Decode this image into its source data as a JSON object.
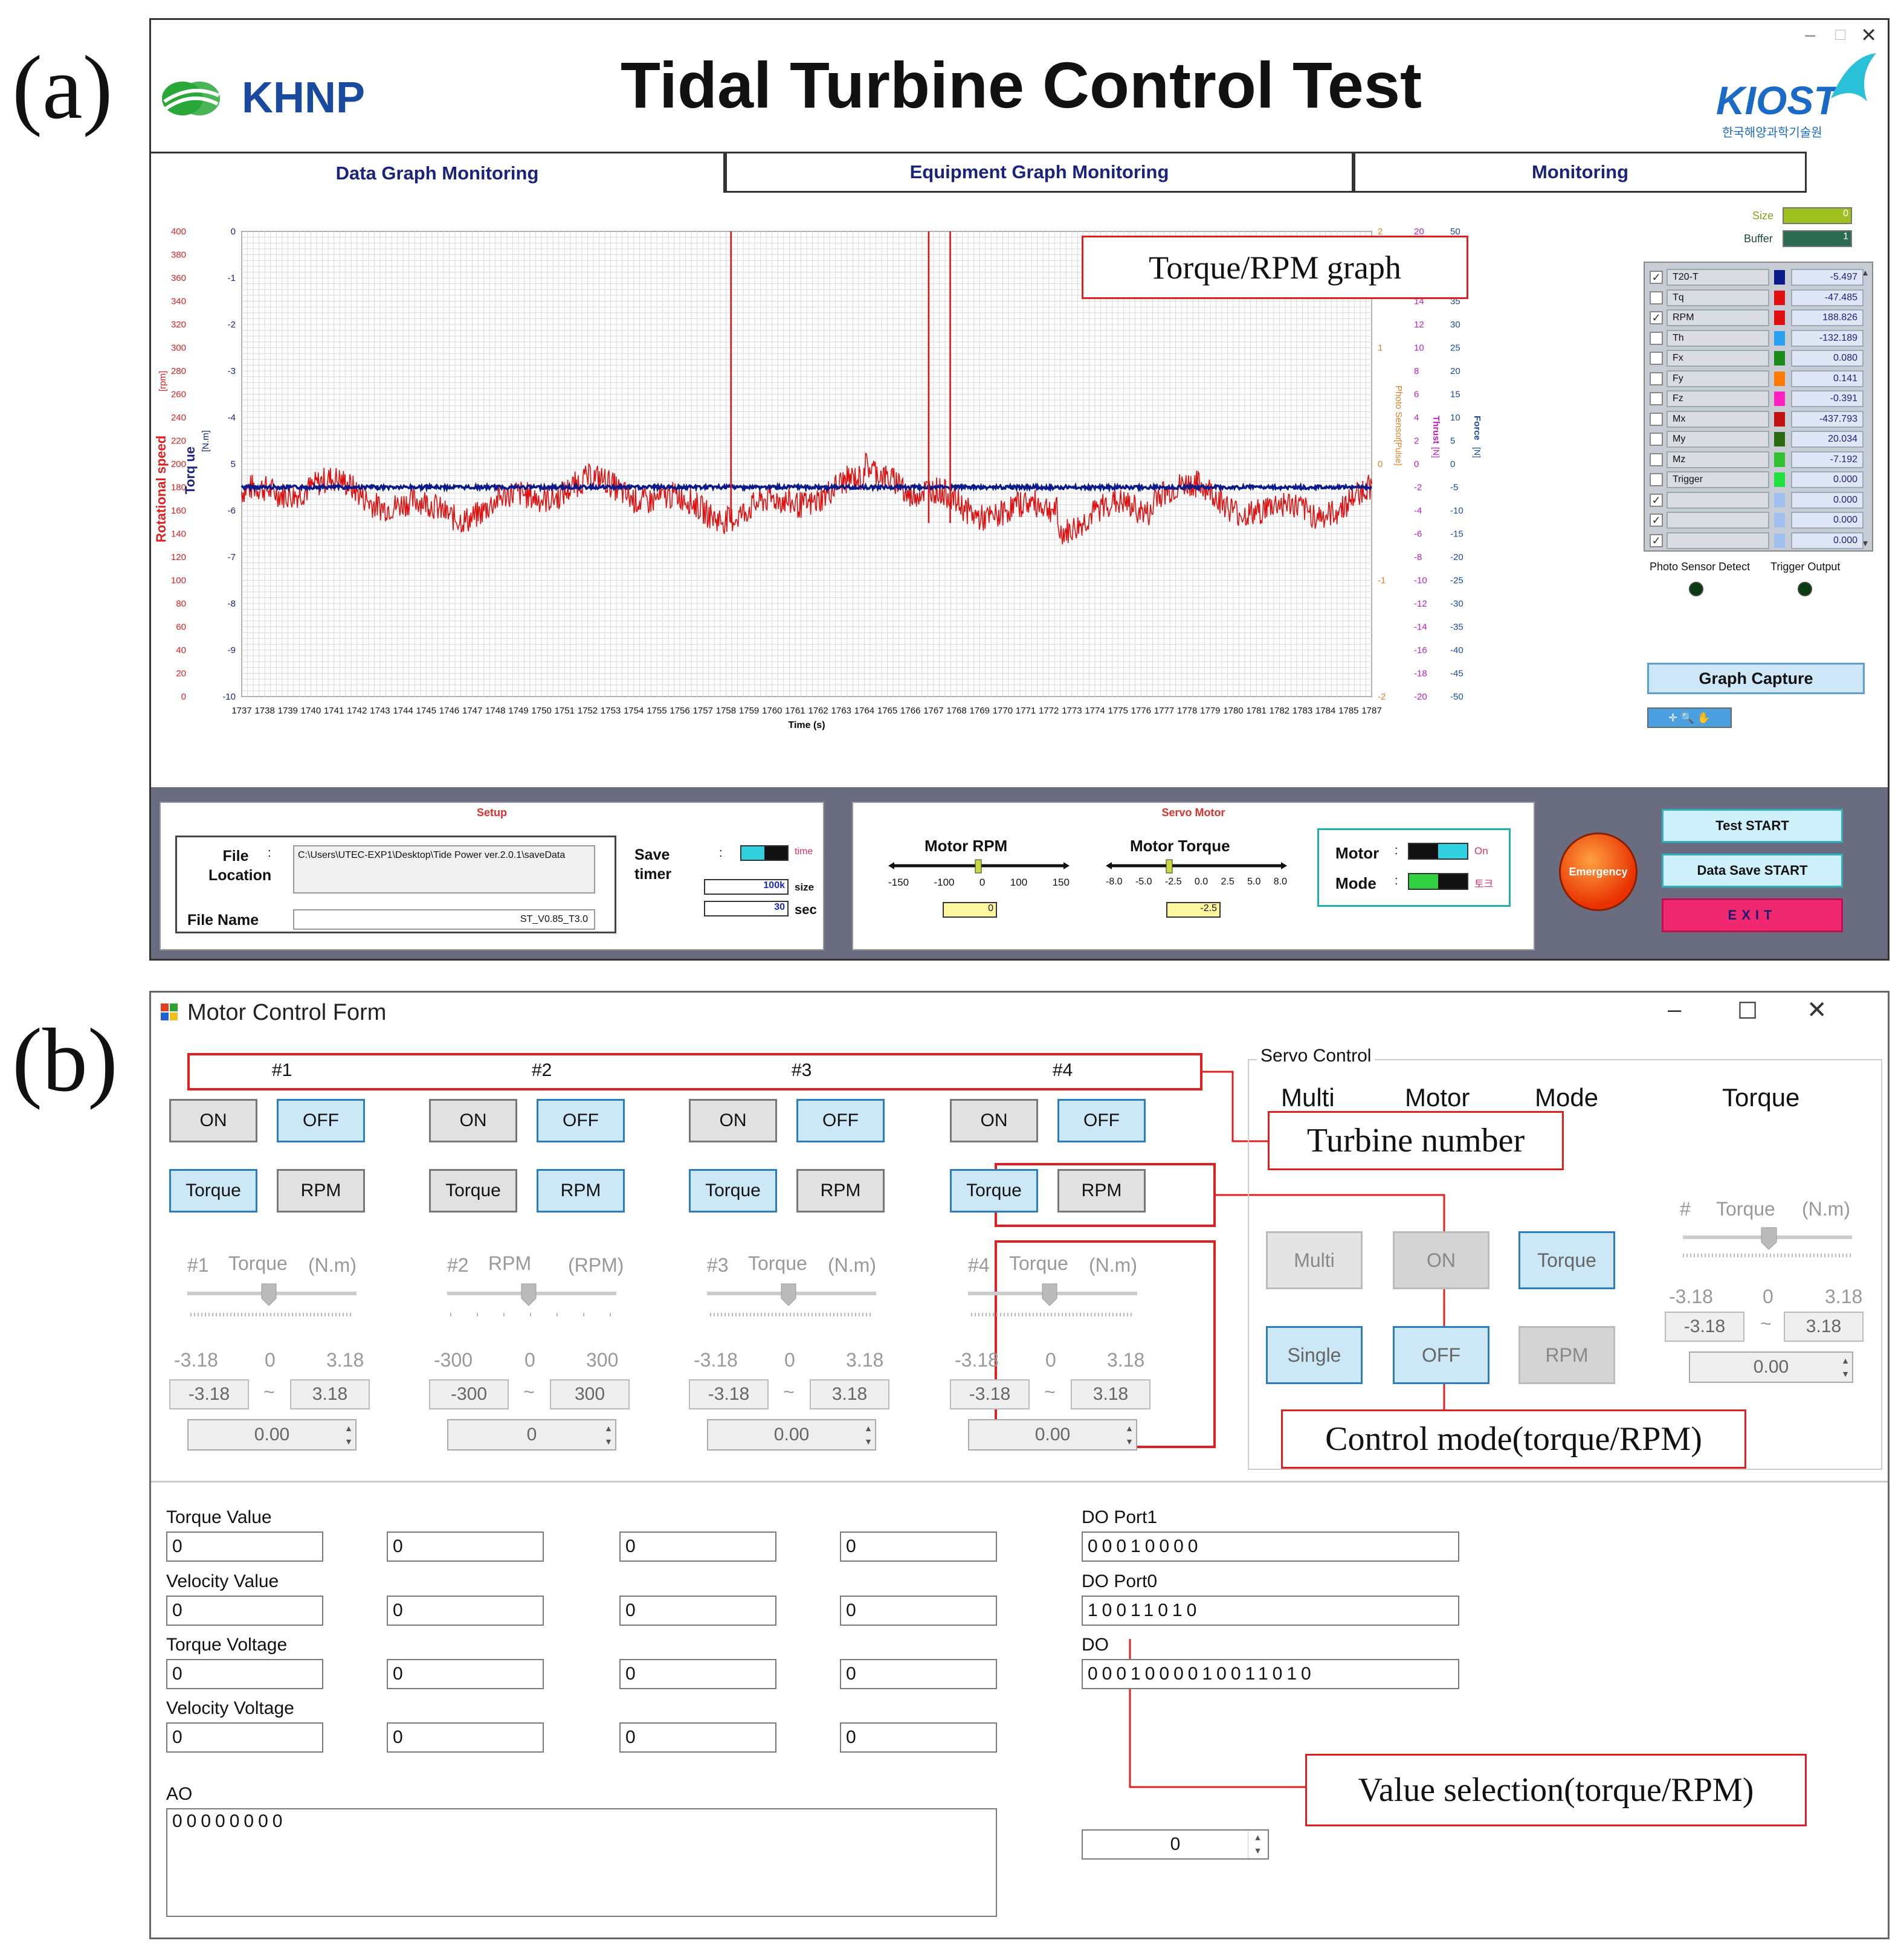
{
  "panel_a_label": "(a)",
  "panel_b_label": "(b)",
  "window_a": {
    "logo_left": "KHNP",
    "title": "Tidal Turbine Control Test",
    "logo_right": "KIOST",
    "logo_right_sub": "한국해양과학기술원",
    "tabs": [
      "Data Graph Monitoring",
      "Equipment Graph Monitoring",
      "Monitoring"
    ],
    "graph_callout": "Torque/RPM graph",
    "size_label": "Size",
    "size_value": "0",
    "buffer_label": "Buffer",
    "buffer_value": "1",
    "legend": [
      {
        "checked": true,
        "name": "T20-T",
        "color": "#0a1a8a",
        "value": "-5.497"
      },
      {
        "checked": false,
        "name": "Tq",
        "color": "#e01010",
        "value": "-47.485"
      },
      {
        "checked": true,
        "name": "RPM",
        "color": "#e01010",
        "value": "188.826"
      },
      {
        "checked": false,
        "name": "Th",
        "color": "#2aa0f0",
        "value": "-132.189"
      },
      {
        "checked": false,
        "name": "Fx",
        "color": "#1a8a1a",
        "value": "0.080"
      },
      {
        "checked": false,
        "name": "Fy",
        "color": "#ff7a00",
        "value": "0.141"
      },
      {
        "checked": false,
        "name": "Fz",
        "color": "#ff20c0",
        "value": "-0.391"
      },
      {
        "checked": false,
        "name": "Mx",
        "color": "#c01010",
        "value": "-437.793"
      },
      {
        "checked": false,
        "name": "My",
        "color": "#2a6a10",
        "value": "20.034"
      },
      {
        "checked": false,
        "name": "Mz",
        "color": "#30c030",
        "value": "-7.192"
      },
      {
        "checked": false,
        "name": "Trigger",
        "color": "#20e040",
        "value": "0.000"
      },
      {
        "checked": true,
        "name": "",
        "color": "#a0c0f0",
        "value": "0.000"
      },
      {
        "checked": true,
        "name": "",
        "color": "#a0c0f0",
        "value": "0.000"
      },
      {
        "checked": true,
        "name": "",
        "color": "#a0c0f0",
        "value": "0.000"
      }
    ],
    "photo_sensor_label": "Photo Sensor Detect",
    "trigger_output_label": "Trigger Output",
    "graph_capture": "Graph Capture",
    "chart": {
      "xlabel": "Time (s)",
      "x_ticks": [
        "1737",
        "1738",
        "1739",
        "1740",
        "1741",
        "1742",
        "1743",
        "1744",
        "1745",
        "1746",
        "1747",
        "1748",
        "1749",
        "1750",
        "1751",
        "1752",
        "1753",
        "1754",
        "1755",
        "1756",
        "1757",
        "1758",
        "1759",
        "1760",
        "1761",
        "1762",
        "1763",
        "1764",
        "1765",
        "1766",
        "1767",
        "1768",
        "1769",
        "1770",
        "1771",
        "1772",
        "1773",
        "1774",
        "1775",
        "1776",
        "1777",
        "1778",
        "1779",
        "1780",
        "1781",
        "1782",
        "1783",
        "1784",
        "1785",
        "1787"
      ],
      "left1_label": "Rotational speed",
      "left1_unit": "[rpm]",
      "left1_ticks": [
        "400",
        "380",
        "360",
        "340",
        "320",
        "300",
        "280",
        "260",
        "240",
        "220",
        "200",
        "180",
        "160",
        "140",
        "120",
        "100",
        "80",
        "60",
        "40",
        "20",
        "0"
      ],
      "left2_label": "Torq ue",
      "left2_unit": "[N.m]",
      "left2_ticks": [
        "0",
        "-1",
        "-2",
        "-3",
        "-4",
        "5",
        "-6",
        "-7",
        "-8",
        "-9",
        "-10"
      ],
      "right1_label": "Photo Sensor",
      "right1_unit": "[Pulse]",
      "right1_ticks": [
        "2",
        "1",
        "0",
        "-1",
        "-2"
      ],
      "right2_label": "Thrust",
      "right2_unit": "[N]",
      "right2_ticks": [
        "20",
        "18",
        "16",
        "14",
        "12",
        "10",
        "8",
        "6",
        "4",
        "2",
        "0",
        "-2",
        "-4",
        "-6",
        "-8",
        "-10",
        "-12",
        "-14",
        "-16",
        "-18",
        "-20"
      ],
      "right3_label": "Force",
      "right3_unit": "[N]",
      "right3_ticks": [
        "50",
        "45",
        "40",
        "35",
        "30",
        "25",
        "20",
        "15",
        "10",
        "5",
        "0",
        "-5",
        "-10",
        "-15",
        "-20",
        "-25",
        "-30",
        "-35",
        "-40",
        "-45",
        "-50"
      ]
    },
    "setup": {
      "title": "Setup",
      "file_location_label": "File Location",
      "colon": ":",
      "file_location_value": "C:\\Users\\UTEC-EXP1\\Desktop\\Tide Power ver.2.0.1\\saveData",
      "file_name_label": "File Name",
      "file_name_value": "ST_V0.85_T3.0",
      "save_timer_label": "Save timer",
      "time_label": "time",
      "size_value": "100k",
      "size_label": "size",
      "sec_value": "30",
      "sec_label": "sec"
    },
    "servo": {
      "title": "Servo Motor",
      "motor_rpm_label": "Motor RPM",
      "rpm_ticks": [
        "-150",
        "-100",
        "0",
        "100",
        "150"
      ],
      "rpm_value": "0",
      "motor_torque_label": "Motor Torque",
      "torque_ticks": [
        "-8.0",
        "-5.0",
        "-2.5",
        "0.0",
        "2.5",
        "5.0",
        "8.0"
      ],
      "torque_value": "-2.5",
      "motor_label": "Motor",
      "motor_state": "On",
      "mode_label": "Mode",
      "mode_state": "토크"
    },
    "emergency": "Emergency",
    "test_start": "Test START",
    "data_save_start": "Data Save START",
    "exit": "EXIT"
  },
  "window_b": {
    "title": "Motor Control Form",
    "turbines": [
      {
        "num": "#1",
        "on": "ON",
        "off": "OFF",
        "torque": "Torque",
        "rpm": "RPM",
        "mode_sel": "torque",
        "slider_label": "Torque",
        "unit": "(N.m)",
        "min": "-3.18",
        "mid": "0",
        "max": "3.18",
        "min_box": "-3.18",
        "max_box": "3.18",
        "value": "0.00"
      },
      {
        "num": "#2",
        "on": "ON",
        "off": "OFF",
        "torque": "Torque",
        "rpm": "RPM",
        "mode_sel": "rpm",
        "slider_label": "RPM",
        "unit": "(RPM)",
        "min": "-300",
        "mid": "0",
        "max": "300",
        "min_box": "-300",
        "max_box": "300",
        "value": "0"
      },
      {
        "num": "#3",
        "on": "ON",
        "off": "OFF",
        "torque": "Torque",
        "rpm": "RPM",
        "mode_sel": "torque",
        "slider_label": "Torque",
        "unit": "(N.m)",
        "min": "-3.18",
        "mid": "0",
        "max": "3.18",
        "min_box": "-3.18",
        "max_box": "3.18",
        "value": "0.00"
      },
      {
        "num": "#4",
        "on": "ON",
        "off": "OFF",
        "torque": "Torque",
        "rpm": "RPM",
        "mode_sel": "torque",
        "slider_label": "Torque",
        "unit": "(N.m)",
        "min": "-3.18",
        "mid": "0",
        "max": "3.18",
        "min_box": "-3.18",
        "max_box": "3.18",
        "value": "0.00"
      }
    ],
    "tilde": "~",
    "callout_turbine": "Turbine number",
    "callout_control": "Control mode(torque/RPM)",
    "callout_value": "Value selection(torque/RPM)",
    "servo_control": {
      "title": "Servo Control",
      "headers": [
        "Multi",
        "Motor",
        "Mode",
        "Torque"
      ],
      "multi": "Multi",
      "single": "Single",
      "on": "ON",
      "off": "OFF",
      "torque": "Torque",
      "rpm": "RPM",
      "hash": "#",
      "slider_label": "Torque",
      "unit": "(N.m)",
      "min": "-3.18",
      "mid": "0",
      "max": "3.18",
      "min_box": "-3.18",
      "max_box": "3.18",
      "value": "0.00"
    },
    "values": {
      "torque_value_label": "Torque Value",
      "velocity_value_label": "Velocity Value",
      "torque_voltage_label": "Torque Voltage",
      "velocity_voltage_label": "Velocity Voltage",
      "torque_value": [
        "0",
        "0",
        "0",
        "0"
      ],
      "velocity_value": [
        "0",
        "0",
        "0",
        "0"
      ],
      "torque_voltage": [
        "0",
        "0",
        "0",
        "0"
      ],
      "velocity_voltage": [
        "0",
        "0",
        "0",
        "0"
      ],
      "do_port1_label": "DO Port1",
      "do_port1": "00010000",
      "do_port0_label": "DO Port0",
      "do_port0": "10011010",
      "do_label": "DO",
      "do": "0001000010011010",
      "ao_label": "AO",
      "ao": "00000000",
      "spin_value": "0"
    }
  }
}
